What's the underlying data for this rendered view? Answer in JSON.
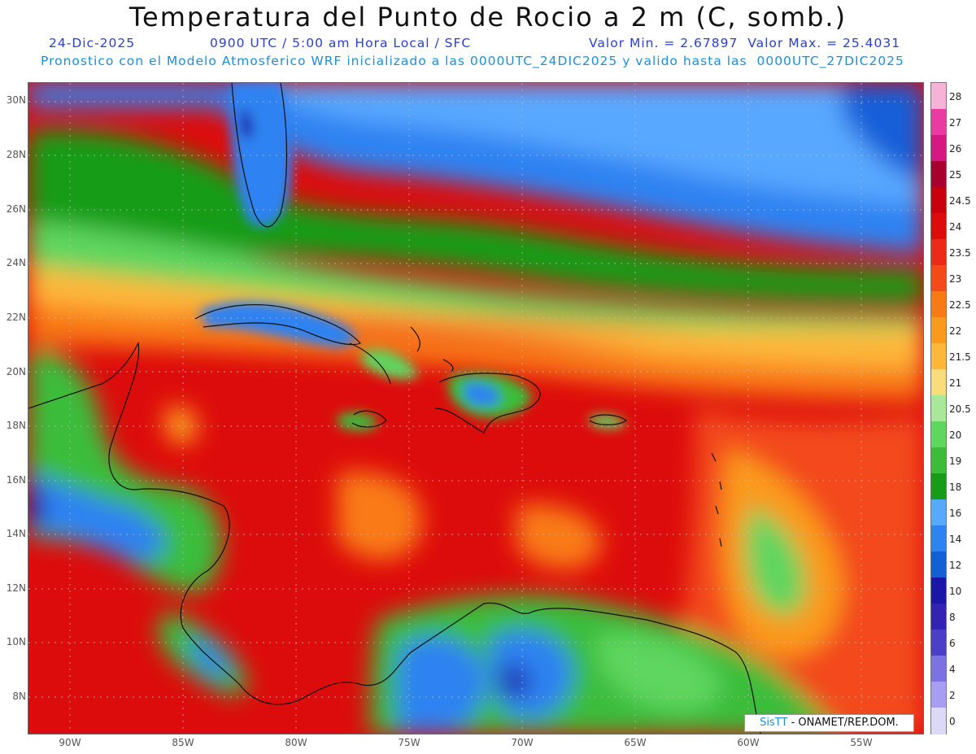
{
  "title": "Temperatura del Punto de Rocio a 2 m (C, somb.)",
  "subtitle": {
    "date": "24-Dic-2025",
    "time": "0900 UTC / 5:00 am Hora Local / SFC",
    "minmax": "Valor Min. = 2.67897  Valor Max. = 25.4031",
    "model": "Pronostico con el Modelo Atmosferico WRF inicializado a las 0000UTC_24DIC2025 y valido hasta las  0000UTC_27DIC2025"
  },
  "lat_labels": [
    "30N",
    "28N",
    "26N",
    "24N",
    "22N",
    "20N",
    "18N",
    "16N",
    "14N",
    "12N",
    "10N",
    "8N"
  ],
  "lon_labels": [
    "90W",
    "85W",
    "80W",
    "75W",
    "70W",
    "65W",
    "60W",
    "55W"
  ],
  "colorbar": {
    "labels": [
      "28",
      "27",
      "26",
      "25",
      "24.5",
      "24",
      "23.5",
      "23",
      "22.5",
      "22",
      "21.5",
      "21",
      "20.5",
      "20",
      "19",
      "18",
      "16",
      "14",
      "12",
      "10",
      "8",
      "6",
      "4",
      "2",
      "0"
    ],
    "colors": [
      "#f6b3d8",
      "#ec3aa3",
      "#d41a82",
      "#a8002f",
      "#c8000d",
      "#dd0c0c",
      "#ec2a1a",
      "#f34a1a",
      "#f97a12",
      "#fb9a1a",
      "#fdb83a",
      "#fbdc7a",
      "#a8e89a",
      "#5fd65e",
      "#3bbd3b",
      "#169c16",
      "#58a8ff",
      "#2e82f2",
      "#135fd8",
      "#1a17a8",
      "#3223b5",
      "#4b3ec9",
      "#7c72e3",
      "#a79ef2",
      "#dcd9f6"
    ]
  },
  "credit": {
    "brand": "SisTT",
    "text": " - ONAMET/REP.DOM."
  },
  "colors": {
    "title": "#111111",
    "subtitle": "#2a3fd0",
    "model_line": "#1e8fd8"
  }
}
